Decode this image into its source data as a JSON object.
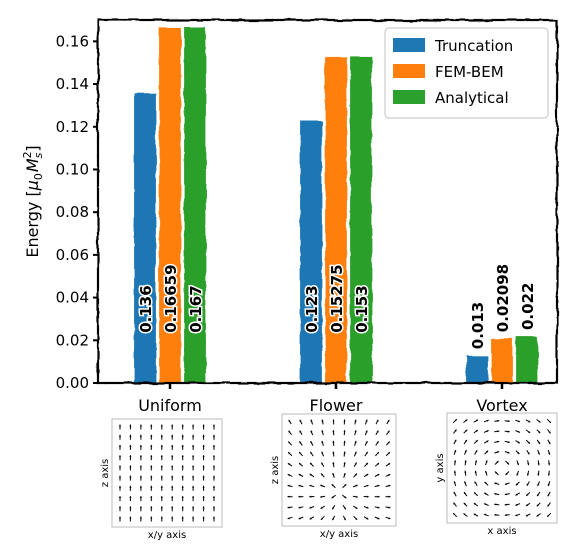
{
  "chart_data": {
    "type": "bar",
    "categories": [
      "Uniform",
      "Flower",
      "Vortex"
    ],
    "series": [
      {
        "name": "Truncation",
        "color": "#1f77b4",
        "values": [
          0.136,
          0.123,
          0.013
        ],
        "labels": [
          "0.136",
          "0.123",
          "0.013"
        ]
      },
      {
        "name": "FEM-BEM",
        "color": "#ff7f0e",
        "values": [
          0.16659,
          0.15275,
          0.02098
        ],
        "labels": [
          "0.16659",
          "0.15275",
          "0.02098"
        ]
      },
      {
        "name": "Analytical",
        "color": "#2ca02c",
        "values": [
          0.167,
          0.153,
          0.022
        ],
        "labels": [
          "0.167",
          "0.153",
          "0.022"
        ]
      }
    ],
    "ylabel_prefix": "Energy [",
    "ylabel_math": "μ",
    "ylabel_sub0": "0",
    "ylabel_M": "M",
    "ylabel_subs": "s",
    "ylabel_sup": "2",
    "ylabel_suffix": "]",
    "ylim": [
      0,
      0.17
    ],
    "yticks": [
      0.0,
      0.02,
      0.04,
      0.06,
      0.08,
      0.1,
      0.12,
      0.14,
      0.16
    ],
    "ytick_labels": [
      "0.00",
      "0.02",
      "0.04",
      "0.06",
      "0.08",
      "0.10",
      "0.12",
      "0.14",
      "0.16"
    ],
    "legend_position": "top-right",
    "insets": [
      {
        "pattern": "uniform",
        "xlabel": "x/y axis",
        "ylabel": "z axis"
      },
      {
        "pattern": "flower",
        "xlabel": "x/y axis",
        "ylabel": "z axis"
      },
      {
        "pattern": "vortex",
        "xlabel": "x axis",
        "ylabel": "y axis"
      }
    ]
  }
}
